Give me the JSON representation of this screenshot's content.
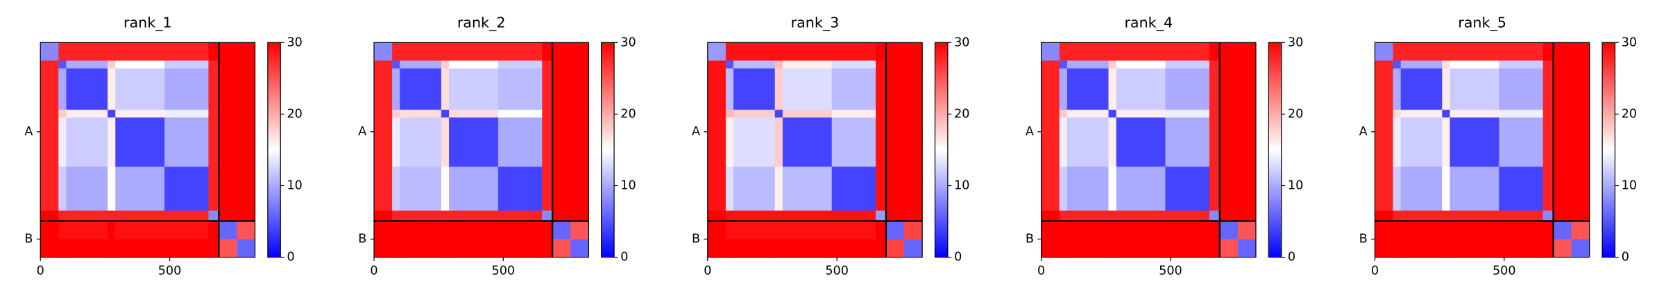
{
  "chart_data": [
    {
      "type": "heatmap",
      "title": "rank_1",
      "bins": [
        0,
        70,
        100,
        260,
        290,
        480,
        650,
        690,
        760,
        830
      ],
      "values": [
        [
          8,
          28,
          28,
          28,
          28,
          28,
          30,
          30,
          30
        ],
        [
          28,
          5,
          10,
          18,
          15,
          12,
          28,
          30,
          30
        ],
        [
          28,
          10,
          4,
          16,
          12,
          10,
          28,
          30,
          30
        ],
        [
          28,
          18,
          16,
          4,
          16,
          14,
          28,
          30,
          30
        ],
        [
          28,
          14,
          12,
          16,
          4,
          10,
          28,
          30,
          30
        ],
        [
          28,
          12,
          10,
          15,
          10,
          4,
          28,
          30,
          30
        ],
        [
          30,
          28,
          28,
          28,
          28,
          28,
          8,
          30,
          30
        ],
        [
          30,
          29,
          29,
          30,
          29,
          29,
          30,
          6,
          25
        ],
        [
          30,
          30,
          30,
          30,
          30,
          30,
          30,
          25,
          6
        ]
      ],
      "xlim": [
        0,
        830
      ],
      "ylim": [
        830,
        0
      ],
      "xticks": [
        0,
        500
      ],
      "yticks": [
        {
          "value": 345,
          "label": "A"
        },
        {
          "value": 760,
          "label": "B"
        }
      ],
      "chain_breaks": [
        690
      ],
      "clim": [
        0,
        30
      ],
      "cticks": [
        0,
        10,
        20,
        30
      ],
      "colors": [
        "#0000ff",
        "#ffffff",
        "#ff0000"
      ]
    },
    {
      "type": "heatmap",
      "title": "rank_2",
      "bins": [
        0,
        70,
        100,
        260,
        290,
        480,
        650,
        690,
        760,
        830
      ],
      "values": [
        [
          8,
          28,
          28,
          28,
          28,
          28,
          30,
          30,
          30
        ],
        [
          28,
          5,
          10,
          18,
          15,
          12,
          28,
          30,
          30
        ],
        [
          28,
          10,
          4,
          17,
          12,
          11,
          28,
          30,
          30
        ],
        [
          28,
          18,
          17,
          4,
          17,
          15,
          28,
          30,
          30
        ],
        [
          28,
          14,
          12,
          17,
          4,
          10,
          28,
          30,
          30
        ],
        [
          28,
          12,
          11,
          15,
          10,
          4,
          28,
          30,
          30
        ],
        [
          30,
          28,
          28,
          28,
          28,
          28,
          8,
          30,
          30
        ],
        [
          30,
          30,
          30,
          30,
          30,
          30,
          30,
          6,
          25
        ],
        [
          30,
          30,
          30,
          30,
          30,
          30,
          30,
          25,
          6
        ]
      ],
      "xlim": [
        0,
        830
      ],
      "ylim": [
        830,
        0
      ],
      "xticks": [
        0,
        500
      ],
      "yticks": [
        {
          "value": 345,
          "label": "A"
        },
        {
          "value": 760,
          "label": "B"
        }
      ],
      "chain_breaks": [
        690
      ],
      "clim": [
        0,
        30
      ],
      "cticks": [
        0,
        10,
        20,
        30
      ],
      "colors": [
        "#0000ff",
        "#ffffff",
        "#ff0000"
      ]
    },
    {
      "type": "heatmap",
      "title": "rank_3",
      "bins": [
        0,
        70,
        100,
        260,
        290,
        480,
        650,
        690,
        760,
        830
      ],
      "values": [
        [
          9,
          29,
          29,
          29,
          29,
          29,
          30,
          30,
          30
        ],
        [
          29,
          5,
          11,
          19,
          16,
          13,
          29,
          30,
          30
        ],
        [
          29,
          11,
          4,
          18,
          13,
          11,
          29,
          30,
          30
        ],
        [
          29,
          19,
          18,
          4,
          18,
          16,
          29,
          30,
          30
        ],
        [
          29,
          16,
          13,
          18,
          4,
          11,
          29,
          30,
          30
        ],
        [
          29,
          13,
          11,
          16,
          11,
          4,
          29,
          30,
          30
        ],
        [
          30,
          29,
          29,
          29,
          29,
          29,
          9,
          30,
          30
        ],
        [
          30,
          29,
          29,
          29,
          29,
          29,
          30,
          6,
          26
        ],
        [
          30,
          30,
          30,
          30,
          30,
          30,
          30,
          26,
          6
        ]
      ],
      "xlim": [
        0,
        830
      ],
      "ylim": [
        830,
        0
      ],
      "xticks": [
        0,
        500
      ],
      "yticks": [
        {
          "value": 345,
          "label": "A"
        },
        {
          "value": 760,
          "label": "B"
        }
      ],
      "chain_breaks": [
        690
      ],
      "clim": [
        0,
        30
      ],
      "cticks": [
        0,
        10,
        20,
        30
      ],
      "colors": [
        "#0000ff",
        "#ffffff",
        "#ff0000"
      ]
    },
    {
      "type": "heatmap",
      "title": "rank_4",
      "bins": [
        0,
        70,
        100,
        260,
        290,
        480,
        650,
        690,
        760,
        830
      ],
      "values": [
        [
          8,
          28,
          28,
          28,
          28,
          28,
          30,
          30,
          30
        ],
        [
          28,
          5,
          10,
          18,
          15,
          12,
          28,
          30,
          30
        ],
        [
          28,
          10,
          4,
          16,
          12,
          10,
          28,
          30,
          30
        ],
        [
          28,
          18,
          16,
          4,
          16,
          14,
          28,
          30,
          30
        ],
        [
          28,
          14,
          12,
          16,
          4,
          10,
          28,
          30,
          30
        ],
        [
          28,
          12,
          10,
          15,
          10,
          4,
          28,
          30,
          30
        ],
        [
          30,
          28,
          28,
          28,
          28,
          28,
          8,
          30,
          30
        ],
        [
          30,
          30,
          30,
          30,
          30,
          30,
          30,
          6,
          25
        ],
        [
          30,
          30,
          30,
          30,
          30,
          30,
          30,
          25,
          6
        ]
      ],
      "xlim": [
        0,
        830
      ],
      "ylim": [
        830,
        0
      ],
      "xticks": [
        0,
        500
      ],
      "yticks": [
        {
          "value": 345,
          "label": "A"
        },
        {
          "value": 760,
          "label": "B"
        }
      ],
      "chain_breaks": [
        690
      ],
      "clim": [
        0,
        30
      ],
      "cticks": [
        0,
        10,
        20,
        30
      ],
      "colors": [
        "#0000ff",
        "#ffffff",
        "#ff0000"
      ]
    },
    {
      "type": "heatmap",
      "title": "rank_5",
      "bins": [
        0,
        70,
        100,
        260,
        290,
        480,
        650,
        690,
        760,
        830
      ],
      "values": [
        [
          8,
          28,
          28,
          28,
          28,
          28,
          30,
          30,
          30
        ],
        [
          28,
          5,
          10,
          17,
          15,
          12,
          28,
          30,
          30
        ],
        [
          28,
          10,
          4,
          16,
          12,
          10,
          28,
          30,
          30
        ],
        [
          28,
          17,
          16,
          4,
          16,
          14,
          28,
          30,
          30
        ],
        [
          28,
          14,
          12,
          16,
          4,
          10,
          28,
          30,
          30
        ],
        [
          28,
          12,
          10,
          15,
          10,
          4,
          28,
          30,
          30
        ],
        [
          30,
          28,
          28,
          28,
          28,
          28,
          8,
          30,
          30
        ],
        [
          30,
          30,
          30,
          30,
          30,
          30,
          30,
          6,
          25
        ],
        [
          30,
          30,
          30,
          30,
          30,
          30,
          30,
          25,
          6
        ]
      ],
      "xlim": [
        0,
        830
      ],
      "ylim": [
        830,
        0
      ],
      "xticks": [
        0,
        500
      ],
      "yticks": [
        {
          "value": 345,
          "label": "A"
        },
        {
          "value": 760,
          "label": "B"
        }
      ],
      "chain_breaks": [
        690
      ],
      "clim": [
        0,
        30
      ],
      "cticks": [
        0,
        10,
        20,
        30
      ],
      "colors": [
        "#0000ff",
        "#ffffff",
        "#ff0000"
      ]
    }
  ]
}
